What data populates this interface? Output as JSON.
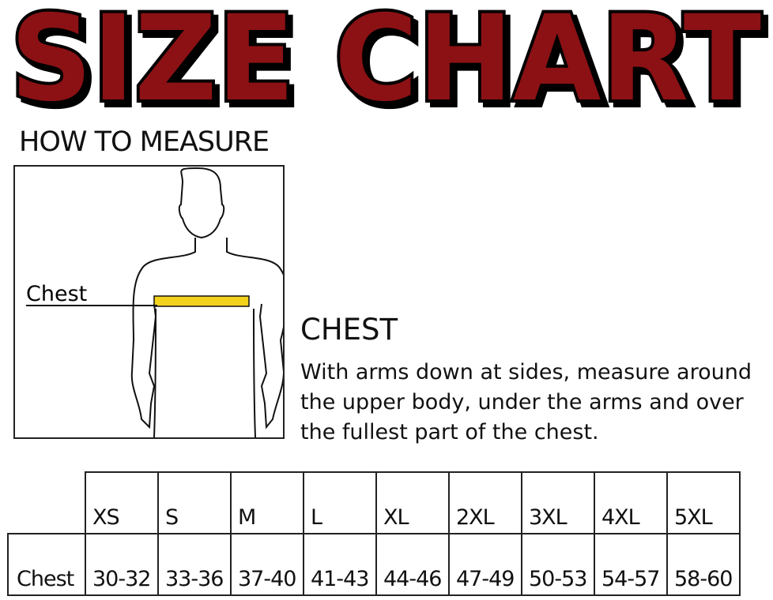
{
  "title": "SIZE CHART",
  "how_to_measure": "HOW TO MEASURE",
  "figure": {
    "label": "Chest",
    "tape_color": "#f2d21b"
  },
  "chest_section": {
    "heading": "CHEST",
    "instructions": "With arms down at sides, measure around the upper body, under the arms and over the fullest part of the chest."
  },
  "colors": {
    "title_fill": "#8b1114",
    "title_outline": "#000000"
  },
  "table": {
    "sizes": [
      "XS",
      "S",
      "M",
      "L",
      "XL",
      "2XL",
      "3XL",
      "4XL",
      "5XL"
    ],
    "rows": [
      {
        "label": "Chest",
        "values": [
          "30-32",
          "33-36",
          "37-40",
          "41-43",
          "44-46",
          "47-49",
          "50-53",
          "54-57",
          "58-60"
        ]
      }
    ]
  }
}
